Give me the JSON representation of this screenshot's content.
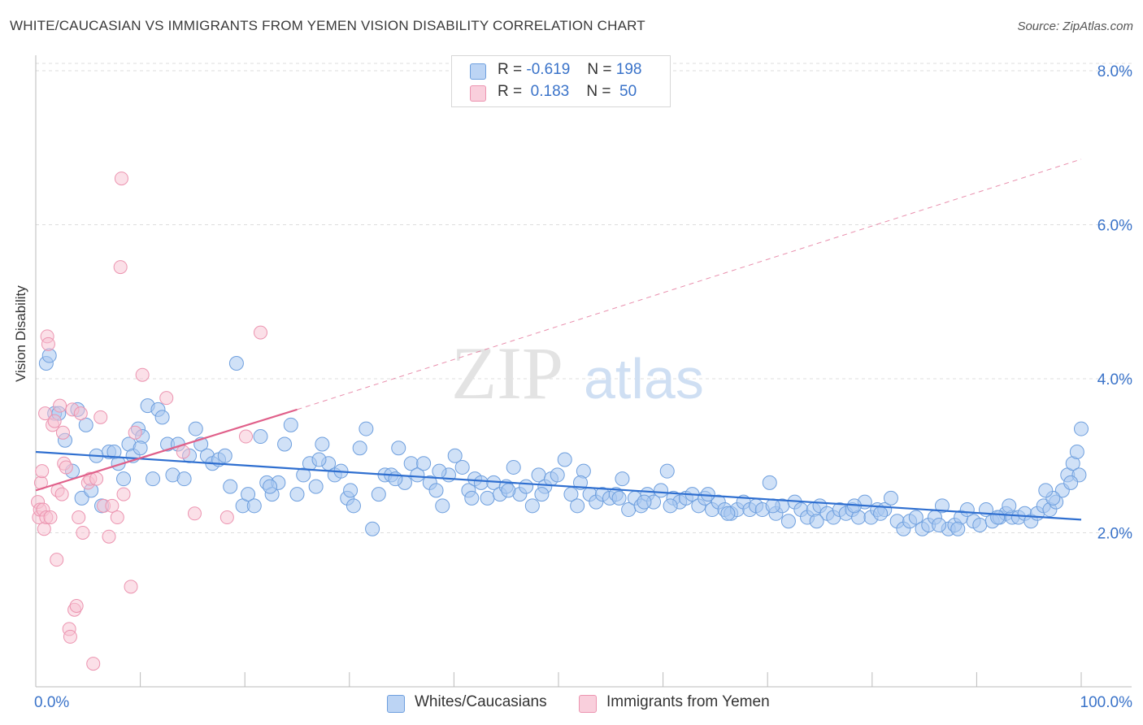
{
  "title": "WHITE/CAUCASIAN VS IMMIGRANTS FROM YEMEN VISION DISABILITY CORRELATION CHART",
  "source": "Source: ZipAtlas.com",
  "watermark": {
    "part1": "ZIP",
    "part2": "atlas"
  },
  "colors": {
    "blue_fill": "#a9c8f0",
    "blue_stroke": "#6e9fde",
    "blue_line": "#2f6fd0",
    "pink_fill": "#f7c2d2",
    "pink_stroke": "#ec94b0",
    "pink_line": "#e0608a",
    "axis_text": "#3a73c9",
    "grid": "#dddddd"
  },
  "legend_top": {
    "rows": [
      {
        "r_label": "R =",
        "r_value": "-0.619",
        "n_label": "N =",
        "n_value": "198"
      },
      {
        "r_label": "R =",
        "r_value": "0.183",
        "n_label": "N =",
        "n_value": "50"
      }
    ]
  },
  "legend_bottom": [
    {
      "label": "Whites/Caucasians"
    },
    {
      "label": "Immigrants from Yemen"
    }
  ],
  "chart_data": {
    "type": "scatter",
    "title": "WHITE/CAUCASIAN VS IMMIGRANTS FROM YEMEN VISION DISABILITY CORRELATION CHART",
    "xlabel": "",
    "ylabel": "Vision Disability",
    "xlim": [
      0,
      100
    ],
    "ylim": [
      0,
      8.2
    ],
    "x_tick_labels": [
      "0.0%",
      "100.0%"
    ],
    "y_ticks": [
      2,
      4,
      6,
      8
    ],
    "y_tick_labels": [
      "2.0%",
      "4.0%",
      "6.0%",
      "8.0%"
    ],
    "grid": true,
    "legend_position": "top-center",
    "series": [
      {
        "name": "Whites/Caucasians",
        "R": -0.619,
        "N": 198,
        "trend": {
          "x": [
            0,
            100
          ],
          "y": [
            3.05,
            2.17
          ]
        },
        "points": [
          [
            1,
            4.2
          ],
          [
            1.3,
            4.3
          ],
          [
            1.8,
            3.55
          ],
          [
            2.2,
            3.55
          ],
          [
            2.8,
            3.2
          ],
          [
            3.5,
            2.8
          ],
          [
            4,
            3.6
          ],
          [
            4.4,
            2.45
          ],
          [
            4.8,
            3.4
          ],
          [
            5.3,
            2.55
          ],
          [
            5.8,
            3.0
          ],
          [
            6.3,
            2.35
          ],
          [
            7,
            3.05
          ],
          [
            7.5,
            3.05
          ],
          [
            7.9,
            2.9
          ],
          [
            8.4,
            2.7
          ],
          [
            8.9,
            3.15
          ],
          [
            9.3,
            3.0
          ],
          [
            9.8,
            3.35
          ],
          [
            10.2,
            3.25
          ],
          [
            10.7,
            3.65
          ],
          [
            11.2,
            2.7
          ],
          [
            11.7,
            3.6
          ],
          [
            12.1,
            3.5
          ],
          [
            12.6,
            3.15
          ],
          [
            13.1,
            2.75
          ],
          [
            13.6,
            3.15
          ],
          [
            14.2,
            2.7
          ],
          [
            14.7,
            3.0
          ],
          [
            15.3,
            3.35
          ],
          [
            15.8,
            3.15
          ],
          [
            16.4,
            3.0
          ],
          [
            16.9,
            2.9
          ],
          [
            17.5,
            2.95
          ],
          [
            18.1,
            3.0
          ],
          [
            18.6,
            2.6
          ],
          [
            19.2,
            4.2
          ],
          [
            19.8,
            2.35
          ],
          [
            20.3,
            2.5
          ],
          [
            20.9,
            2.35
          ],
          [
            21.5,
            3.25
          ],
          [
            22.1,
            2.65
          ],
          [
            22.6,
            2.5
          ],
          [
            23.2,
            2.65
          ],
          [
            23.8,
            3.15
          ],
          [
            24.4,
            3.4
          ],
          [
            25,
            2.5
          ],
          [
            25.6,
            2.75
          ],
          [
            26.2,
            2.9
          ],
          [
            26.8,
            2.6
          ],
          [
            27.4,
            3.15
          ],
          [
            28,
            2.9
          ],
          [
            28.6,
            2.75
          ],
          [
            29.2,
            2.8
          ],
          [
            29.8,
            2.45
          ],
          [
            30.4,
            2.35
          ],
          [
            31,
            3.1
          ],
          [
            31.6,
            3.35
          ],
          [
            32.2,
            2.05
          ],
          [
            32.8,
            2.5
          ],
          [
            33.4,
            2.75
          ],
          [
            34,
            2.75
          ],
          [
            34.7,
            3.1
          ],
          [
            35.3,
            2.65
          ],
          [
            35.9,
            2.9
          ],
          [
            36.5,
            2.75
          ],
          [
            37.1,
            2.9
          ],
          [
            37.7,
            2.65
          ],
          [
            38.3,
            2.55
          ],
          [
            38.9,
            2.35
          ],
          [
            39.5,
            2.75
          ],
          [
            40.1,
            3.0
          ],
          [
            40.8,
            2.85
          ],
          [
            41.4,
            2.55
          ],
          [
            42,
            2.7
          ],
          [
            42.6,
            2.65
          ],
          [
            43.2,
            2.45
          ],
          [
            43.8,
            2.65
          ],
          [
            44.4,
            2.5
          ],
          [
            45,
            2.6
          ],
          [
            45.7,
            2.85
          ],
          [
            46.3,
            2.5
          ],
          [
            46.9,
            2.6
          ],
          [
            47.5,
            2.35
          ],
          [
            48.1,
            2.75
          ],
          [
            48.7,
            2.6
          ],
          [
            49.3,
            2.7
          ],
          [
            49.9,
            2.75
          ],
          [
            50.6,
            2.95
          ],
          [
            51.2,
            2.5
          ],
          [
            51.8,
            2.35
          ],
          [
            52.4,
            2.8
          ],
          [
            53,
            2.5
          ],
          [
            53.6,
            2.4
          ],
          [
            54.2,
            2.5
          ],
          [
            54.9,
            2.45
          ],
          [
            55.5,
            2.5
          ],
          [
            56.1,
            2.7
          ],
          [
            56.7,
            2.3
          ],
          [
            57.3,
            2.45
          ],
          [
            57.9,
            2.35
          ],
          [
            58.5,
            2.5
          ],
          [
            59.1,
            2.4
          ],
          [
            59.8,
            2.55
          ],
          [
            60.4,
            2.8
          ],
          [
            61,
            2.45
          ],
          [
            61.6,
            2.4
          ],
          [
            62.2,
            2.45
          ],
          [
            62.8,
            2.5
          ],
          [
            63.4,
            2.35
          ],
          [
            64,
            2.45
          ],
          [
            64.7,
            2.3
          ],
          [
            65.3,
            2.4
          ],
          [
            65.9,
            2.3
          ],
          [
            66.5,
            2.25
          ],
          [
            67.1,
            2.3
          ],
          [
            67.7,
            2.4
          ],
          [
            68.3,
            2.3
          ],
          [
            68.9,
            2.35
          ],
          [
            69.5,
            2.3
          ],
          [
            70.2,
            2.65
          ],
          [
            70.8,
            2.25
          ],
          [
            71.4,
            2.35
          ],
          [
            72,
            2.15
          ],
          [
            72.6,
            2.4
          ],
          [
            73.2,
            2.3
          ],
          [
            73.8,
            2.2
          ],
          [
            74.4,
            2.3
          ],
          [
            75,
            2.35
          ],
          [
            75.7,
            2.25
          ],
          [
            76.3,
            2.2
          ],
          [
            76.9,
            2.3
          ],
          [
            77.5,
            2.25
          ],
          [
            78.1,
            2.3
          ],
          [
            78.7,
            2.2
          ],
          [
            79.3,
            2.4
          ],
          [
            79.9,
            2.2
          ],
          [
            80.5,
            2.3
          ],
          [
            81.2,
            2.3
          ],
          [
            81.8,
            2.45
          ],
          [
            82.4,
            2.15
          ],
          [
            83,
            2.05
          ],
          [
            83.6,
            2.15
          ],
          [
            84.2,
            2.2
          ],
          [
            84.8,
            2.05
          ],
          [
            85.4,
            2.1
          ],
          [
            86,
            2.2
          ],
          [
            86.7,
            2.35
          ],
          [
            87.3,
            2.05
          ],
          [
            87.9,
            2.1
          ],
          [
            88.5,
            2.2
          ],
          [
            89.1,
            2.3
          ],
          [
            89.7,
            2.15
          ],
          [
            90.3,
            2.1
          ],
          [
            90.9,
            2.3
          ],
          [
            91.5,
            2.15
          ],
          [
            92.2,
            2.2
          ],
          [
            92.8,
            2.25
          ],
          [
            93.4,
            2.2
          ],
          [
            94,
            2.2
          ],
          [
            94.6,
            2.25
          ],
          [
            95.2,
            2.15
          ],
          [
            95.8,
            2.25
          ],
          [
            96.4,
            2.35
          ],
          [
            97,
            2.3
          ],
          [
            97.6,
            2.4
          ],
          [
            98.2,
            2.55
          ],
          [
            98.7,
            2.75
          ],
          [
            99.2,
            2.9
          ],
          [
            99.6,
            3.05
          ],
          [
            100,
            3.35
          ],
          [
            99.8,
            2.75
          ],
          [
            99,
            2.65
          ],
          [
            97.3,
            2.45
          ],
          [
            93.1,
            2.35
          ],
          [
            96.6,
            2.55
          ],
          [
            78.3,
            2.35
          ],
          [
            64.3,
            2.5
          ],
          [
            48.4,
            2.5
          ],
          [
            34.4,
            2.7
          ],
          [
            22.4,
            2.6
          ],
          [
            10,
            3.1
          ],
          [
            45.2,
            2.55
          ],
          [
            55.8,
            2.45
          ],
          [
            70.5,
            2.35
          ],
          [
            86.4,
            2.1
          ],
          [
            92,
            2.2
          ],
          [
            60.7,
            2.35
          ],
          [
            52.1,
            2.65
          ],
          [
            38.6,
            2.8
          ],
          [
            27.1,
            2.95
          ],
          [
            41.7,
            2.45
          ],
          [
            66.2,
            2.25
          ],
          [
            74.7,
            2.15
          ],
          [
            80.8,
            2.25
          ],
          [
            88.2,
            2.05
          ],
          [
            58.2,
            2.4
          ],
          [
            30.1,
            2.55
          ]
        ]
      },
      {
        "name": "Immigrants from Yemen",
        "R": 0.183,
        "N": 50,
        "trend": {
          "x": [
            0,
            25
          ],
          "y": [
            2.55,
            3.6
          ]
        },
        "trend_dashed_extension": {
          "x": [
            25,
            100
          ],
          "y": [
            3.6,
            6.85
          ]
        },
        "points": [
          [
            0.2,
            2.4
          ],
          [
            0.3,
            2.2
          ],
          [
            0.4,
            2.3
          ],
          [
            0.5,
            2.65
          ],
          [
            0.6,
            2.8
          ],
          [
            0.7,
            2.3
          ],
          [
            0.8,
            2.05
          ],
          [
            0.9,
            3.55
          ],
          [
            1,
            2.2
          ],
          [
            1.1,
            4.55
          ],
          [
            1.2,
            4.45
          ],
          [
            1.4,
            2.2
          ],
          [
            1.6,
            3.4
          ],
          [
            1.8,
            3.45
          ],
          [
            2,
            1.65
          ],
          [
            2.1,
            2.55
          ],
          [
            2.3,
            3.65
          ],
          [
            2.5,
            2.5
          ],
          [
            2.6,
            3.3
          ],
          [
            2.7,
            2.9
          ],
          [
            2.9,
            2.85
          ],
          [
            3.2,
            0.75
          ],
          [
            3.3,
            0.65
          ],
          [
            3.5,
            3.6
          ],
          [
            3.7,
            1.0
          ],
          [
            3.9,
            1.05
          ],
          [
            4.1,
            2.2
          ],
          [
            4.3,
            3.55
          ],
          [
            4.5,
            2.0
          ],
          [
            5,
            2.65
          ],
          [
            5.2,
            2.7
          ],
          [
            5.5,
            0.3
          ],
          [
            5.8,
            2.7
          ],
          [
            6.2,
            3.5
          ],
          [
            6.5,
            2.35
          ],
          [
            7,
            1.95
          ],
          [
            7.3,
            2.35
          ],
          [
            7.8,
            2.2
          ],
          [
            8.1,
            5.45
          ],
          [
            8.4,
            2.5
          ],
          [
            9.1,
            1.3
          ],
          [
            9.5,
            3.3
          ],
          [
            10.2,
            4.05
          ],
          [
            12.5,
            3.75
          ],
          [
            14.1,
            3.05
          ],
          [
            15.2,
            2.25
          ],
          [
            18.3,
            2.2
          ],
          [
            20.1,
            3.25
          ],
          [
            21.5,
            4.6
          ],
          [
            8.2,
            6.6
          ]
        ]
      }
    ]
  }
}
